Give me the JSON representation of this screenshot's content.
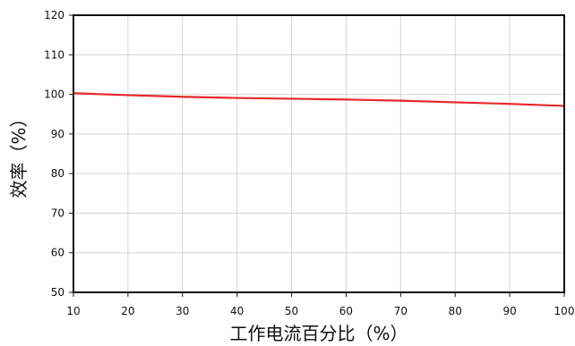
{
  "chart_data": {
    "type": "line",
    "xlabel": "工作电流百分比（%）",
    "ylabel": "效率（%）",
    "xlim": [
      10,
      100
    ],
    "ylim": [
      50,
      120
    ],
    "x_ticks": [
      10,
      20,
      30,
      40,
      50,
      60,
      70,
      80,
      90,
      100
    ],
    "y_ticks": [
      50,
      60,
      70,
      80,
      90,
      100,
      110,
      120
    ],
    "grid": true,
    "series": [
      {
        "color": "#e8262b",
        "x": [
          10,
          20,
          30,
          40,
          50,
          60,
          70,
          80,
          90,
          100
        ],
        "y": [
          100.3,
          99.8,
          99.4,
          99.1,
          98.9,
          98.7,
          98.4,
          98.0,
          97.6,
          97.1
        ]
      }
    ]
  }
}
